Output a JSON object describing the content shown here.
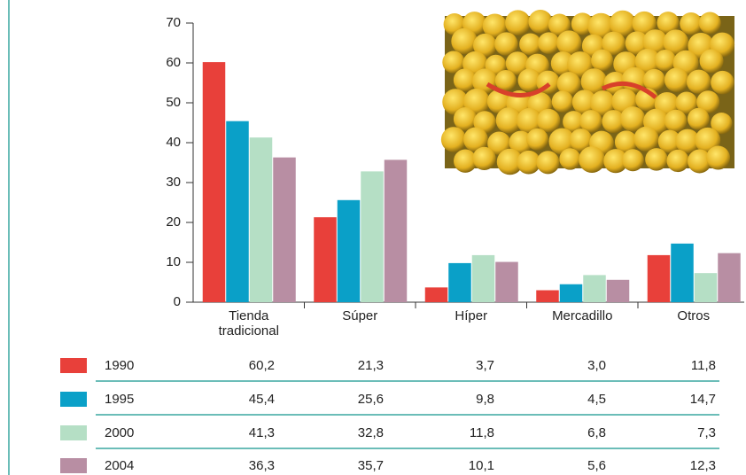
{
  "chart_data": {
    "type": "bar",
    "categories": [
      "Tienda tradicional",
      "Súper",
      "Híper",
      "Mercadillo",
      "Otros"
    ],
    "series": [
      {
        "name": "1990",
        "color": "#e8403a",
        "values": [
          60.2,
          21.3,
          3.7,
          3.0,
          11.8
        ],
        "value_labels": [
          "60,2",
          "21,3",
          "3,7",
          "3,0",
          "11,8"
        ]
      },
      {
        "name": "1995",
        "color": "#0aa0c8",
        "values": [
          45.4,
          25.6,
          9.8,
          4.5,
          14.7
        ],
        "value_labels": [
          "45,4",
          "25,6",
          "9,8",
          "4,5",
          "14,7"
        ]
      },
      {
        "name": "2000",
        "color": "#b5dfc5",
        "values": [
          41.3,
          32.8,
          11.8,
          6.8,
          7.3
        ],
        "value_labels": [
          "41,3",
          "32,8",
          "11,8",
          "6,8",
          "7,3"
        ]
      },
      {
        "name": "2004",
        "color": "#b88ea3",
        "values": [
          36.3,
          35.7,
          10.1,
          5.6,
          12.3
        ],
        "value_labels": [
          "36,3",
          "35,7",
          "10,1",
          "5,6",
          "12,3"
        ]
      }
    ],
    "ylim": [
      0,
      70
    ],
    "yticks": [
      0,
      10,
      20,
      30,
      40,
      50,
      60,
      70
    ],
    "grid": false
  }
}
